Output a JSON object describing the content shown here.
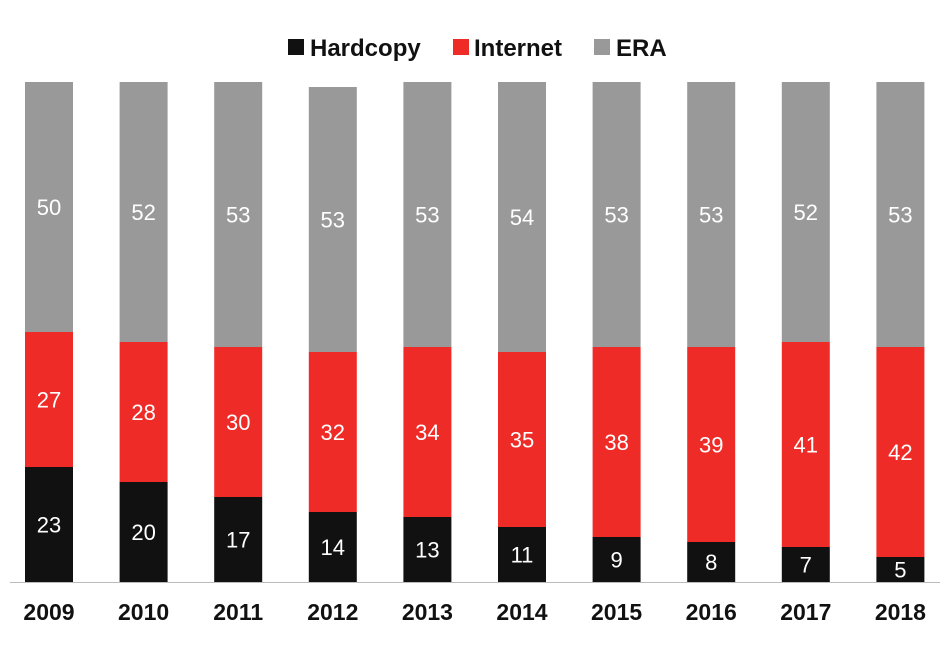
{
  "chart_data": {
    "type": "bar",
    "stacked": true,
    "normalized": true,
    "title": "",
    "xlabel": "",
    "ylabel": "",
    "ylim": [
      0,
      100
    ],
    "grid": false,
    "legend_position": "top-center",
    "categories": [
      "2009",
      "2010",
      "2011",
      "2012",
      "2013",
      "2014",
      "2015",
      "2016",
      "2017",
      "2018"
    ],
    "series": [
      {
        "name": "Hardcopy",
        "color": "#111111",
        "values": [
          23,
          20,
          17,
          14,
          13,
          11,
          9,
          8,
          7,
          5
        ]
      },
      {
        "name": "Internet",
        "color": "#ee2b27",
        "values": [
          27,
          28,
          30,
          32,
          34,
          35,
          38,
          39,
          41,
          42
        ]
      },
      {
        "name": "ERA",
        "color": "#999999",
        "values": [
          50,
          52,
          53,
          53,
          53,
          54,
          53,
          53,
          52,
          53
        ]
      }
    ]
  }
}
